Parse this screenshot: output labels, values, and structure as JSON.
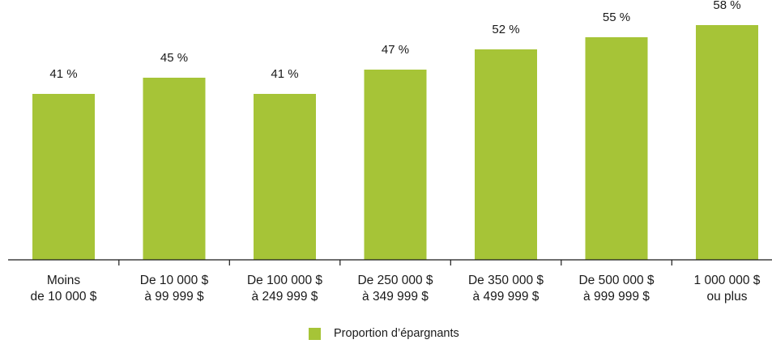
{
  "chart_data": {
    "type": "bar",
    "categories": [
      [
        "Moins",
        "de 10 000 $"
      ],
      [
        "De 10 000 $",
        "à 99 999 $"
      ],
      [
        "De 100 000 $",
        "à 249 999 $"
      ],
      [
        "De 250 000 $",
        "à 349 999 $"
      ],
      [
        "De 350 000 $",
        "à 499 999 $"
      ],
      [
        "De 500 000 $",
        "à 999 999 $"
      ],
      [
        "1 000 000 $",
        "ou plus"
      ]
    ],
    "series": [
      {
        "name": "Proportion d’épargnants",
        "values": [
          41,
          45,
          41,
          47,
          52,
          55,
          58
        ],
        "labels": [
          "41 %",
          "45 %",
          "41 %",
          "47 %",
          "52 %",
          "55 %",
          "58 %"
        ],
        "color": "#a6c437"
      }
    ],
    "ylim": [
      0,
      100
    ],
    "grid": false,
    "legend_position": "bottom-center"
  }
}
